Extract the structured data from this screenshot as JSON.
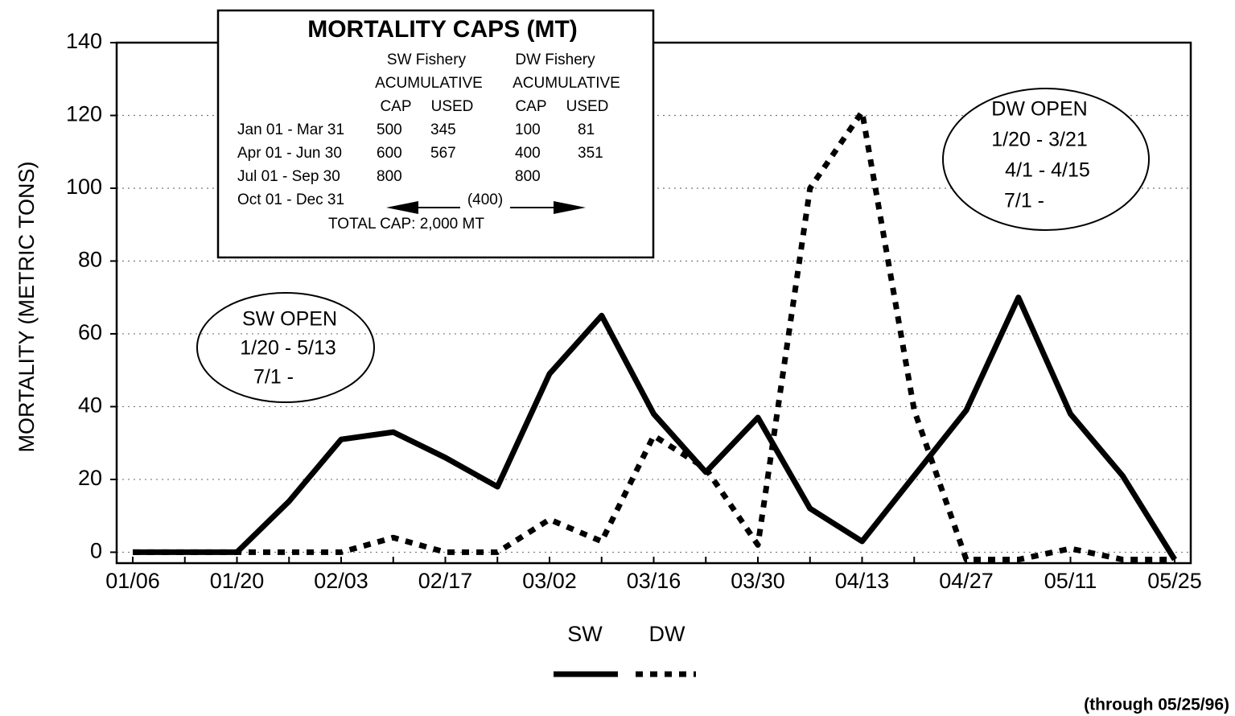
{
  "chart_data": {
    "type": "line",
    "y_label": "MORTALITY (METRIC TONS)",
    "categories": [
      "01/06",
      null,
      "01/20",
      null,
      "02/03",
      null,
      "02/17",
      null,
      "03/02",
      null,
      "03/16",
      null,
      "03/30",
      null,
      "04/13",
      null,
      "04/27",
      null,
      "05/11",
      null,
      "05/25"
    ],
    "series": [
      {
        "name": "SW",
        "color": "#000000",
        "style": "solid",
        "values": [
          0,
          0,
          0,
          14,
          31,
          33,
          26,
          18,
          49,
          65,
          38,
          22,
          37,
          12,
          3,
          21,
          39,
          70,
          38,
          21,
          -2
        ]
      },
      {
        "name": "DW",
        "color": "#000000",
        "style": "dotted",
        "values": [
          0,
          0,
          0,
          0,
          0,
          4,
          0,
          0,
          9,
          3,
          32,
          23,
          2,
          100,
          121,
          39,
          -2,
          -2,
          1,
          -2,
          -2
        ]
      }
    ],
    "ylim": [
      -3,
      140
    ],
    "yticks": [
      0,
      20,
      40,
      60,
      80,
      100,
      120,
      140
    ],
    "grid": true,
    "legend": "bottom",
    "footnote": "(through 05/25/96)",
    "caps_table": {
      "title": "MORTALITY CAPS (MT)",
      "fishery": [
        "SW Fishery",
        "DW Fishery"
      ],
      "kind": [
        "ACUMULATIVE",
        "ACUMULATIVE"
      ],
      "columns": [
        "CAP",
        "USED",
        "CAP",
        "USED"
      ],
      "rows": [
        [
          "Jan 01 - Mar 31",
          "500",
          "345",
          "100",
          "81"
        ],
        [
          "Apr 01 - Jun  30",
          "600",
          "567",
          "400",
          "351"
        ],
        [
          "Jul 01 - Sep 30",
          "800",
          null,
          "800",
          null
        ]
      ],
      "last_row": [
        "Oct 01 - Dec 31",
        "(400)"
      ],
      "total": "TOTAL CAP:  2,000 MT"
    },
    "sw_open": [
      "SW OPEN",
      "1/20 - 5/13",
      "7/1 -"
    ],
    "dw_open": [
      "DW OPEN",
      "1/20 - 3/21",
      "4/1 - 4/15",
      "7/1 -"
    ]
  }
}
